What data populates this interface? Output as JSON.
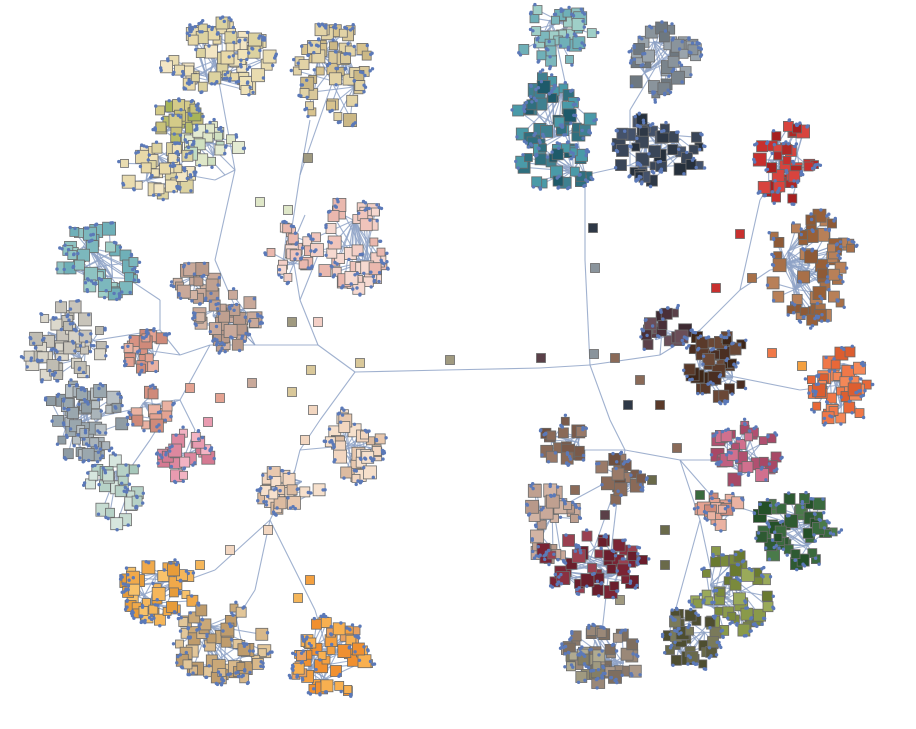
{
  "diagram": {
    "kind": "radial color-clustering dendrogram",
    "edge_color": "#8fa3c7",
    "leaf_dot_color": "#5b79b8",
    "swatch_stroke": "#6a6a6a",
    "clusters": [
      {
        "id": "light-yellow",
        "colors": [
          "#efe2b8",
          "#e8d9a8",
          "#f3e6c4",
          "#dcd2a0",
          "#e9dcb0"
        ]
      },
      {
        "id": "olive-green",
        "colors": [
          "#b8bd6a",
          "#a7b45a",
          "#c9c27a",
          "#d4cb88"
        ]
      },
      {
        "id": "pale-mint",
        "colors": [
          "#dfe7c8",
          "#cfe0c0",
          "#c0dcc4",
          "#e4ebd2"
        ]
      },
      {
        "id": "sand",
        "colors": [
          "#d9c89a",
          "#cbb886",
          "#d8c38e",
          "#e2d3a6"
        ]
      },
      {
        "id": "pink",
        "colors": [
          "#f3cfc6",
          "#eab8ae",
          "#f0c4bb",
          "#f6d9d0"
        ]
      },
      {
        "id": "mauve-brown",
        "colors": [
          "#c9a99a",
          "#b8998a",
          "#d2b4a4",
          "#bfa090"
        ]
      },
      {
        "id": "teal-light",
        "colors": [
          "#8ec3c2",
          "#7cb8bd",
          "#9fcfc8",
          "#6fb0b8"
        ]
      },
      {
        "id": "grey-beige",
        "colors": [
          "#d6d2c6",
          "#c8c4ba",
          "#dcd8cc",
          "#bfbcb2"
        ]
      },
      {
        "id": "salmon",
        "colors": [
          "#e4a291",
          "#d89282",
          "#eab2a2",
          "#cf8a7a"
        ]
      },
      {
        "id": "grey-blue",
        "colors": [
          "#aab4ba",
          "#9aa7ae",
          "#b8c0c4",
          "#8f9ca4"
        ]
      },
      {
        "id": "mint-grey",
        "colors": [
          "#c7dcd2",
          "#b6d1c6",
          "#d6e6de",
          "#a8c8bb"
        ]
      },
      {
        "id": "rose-pink",
        "colors": [
          "#e99bb0",
          "#dd889f",
          "#f2b3c3",
          "#d57a92"
        ]
      },
      {
        "id": "peach-light",
        "colors": [
          "#f2d6c0",
          "#e8c8ae",
          "#f6e0cc",
          "#dcbba0"
        ]
      },
      {
        "id": "orange-gold",
        "colors": [
          "#f5b65a",
          "#f0a94a",
          "#f8c26a",
          "#e79c3a"
        ]
      },
      {
        "id": "tan",
        "colors": [
          "#d8b88a",
          "#c9a878",
          "#e2c699",
          "#bf9c6c"
        ]
      },
      {
        "id": "orange",
        "colors": [
          "#f4a040",
          "#f09030",
          "#f8b050",
          "#e8a060"
        ]
      },
      {
        "id": "teal-dark",
        "colors": [
          "#2f6f7e",
          "#1e5a6a",
          "#3f8090",
          "#4a9aa8"
        ]
      },
      {
        "id": "grey-slate",
        "colors": [
          "#8a949c",
          "#7a848c",
          "#9aa4ac",
          "#6e7880"
        ]
      },
      {
        "id": "navy",
        "colors": [
          "#2e3846",
          "#3a4658",
          "#26303c",
          "#44526a"
        ]
      },
      {
        "id": "red",
        "colors": [
          "#c8302e",
          "#b02826",
          "#d8443e",
          "#a62020"
        ]
      },
      {
        "id": "brown",
        "colors": [
          "#a87048",
          "#986038",
          "#b88058",
          "#8e5a36"
        ]
      },
      {
        "id": "orange-red",
        "colors": [
          "#f07848",
          "#e86838",
          "#f48858",
          "#dc5e30"
        ]
      },
      {
        "id": "plum-dark",
        "colors": [
          "#5a4048",
          "#4a3038",
          "#6a4e58",
          "#3e2a32"
        ]
      },
      {
        "id": "dark-brown",
        "colors": [
          "#5a3a2a",
          "#4a2e22",
          "#6a4836",
          "#3e2618"
        ]
      },
      {
        "id": "magenta-rose",
        "colors": [
          "#c06080",
          "#b05070",
          "#d0708e",
          "#a84866"
        ]
      },
      {
        "id": "forest-green",
        "colors": [
          "#3a6a3e",
          "#2e5a32",
          "#4a7a4a",
          "#245028"
        ]
      },
      {
        "id": "khaki-green",
        "colors": [
          "#8a9a4a",
          "#7a8a3c",
          "#9aaa5a",
          "#6a7a30"
        ]
      },
      {
        "id": "burgundy",
        "colors": [
          "#8a3040",
          "#7a2434",
          "#9a4050",
          "#6a1e2c"
        ]
      },
      {
        "id": "taupe",
        "colors": [
          "#9a8878",
          "#8a786a",
          "#aa9888",
          "#7e6e60"
        ]
      },
      {
        "id": "olive-dark",
        "colors": [
          "#6a6a4a",
          "#5a5a3c",
          "#7a7a5a",
          "#4e4e30"
        ]
      },
      {
        "id": "mocha",
        "colors": [
          "#8a6a58",
          "#7a5a4a",
          "#9a7a68",
          "#6e5040"
        ]
      },
      {
        "id": "khaki-grey",
        "colors": [
          "#a09a80",
          "#908a70",
          "#b0aa90",
          "#847e64"
        ]
      }
    ]
  }
}
